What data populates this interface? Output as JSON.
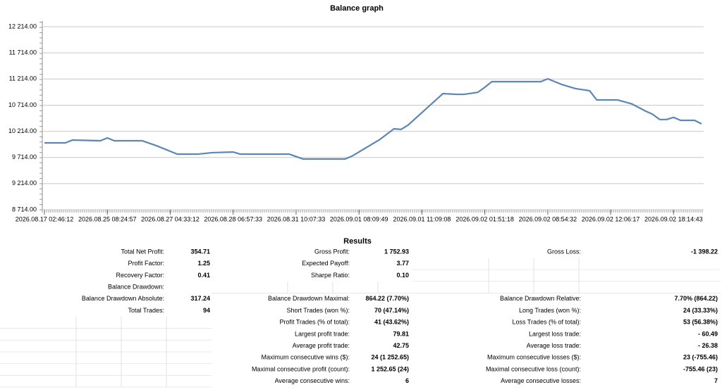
{
  "chart_data": {
    "type": "line",
    "title": "Balance graph",
    "x": [
      0,
      3,
      4,
      8,
      9,
      10,
      14,
      16,
      19,
      22,
      24,
      27,
      28,
      35,
      37,
      43,
      44,
      46,
      48,
      50,
      51,
      52,
      54,
      57,
      59,
      60,
      62,
      63,
      64,
      65,
      71,
      72,
      74,
      76,
      78,
      79,
      82,
      84,
      86,
      87,
      88,
      89,
      90,
      91,
      93,
      94
    ],
    "series": [
      {
        "color": "#5b86b5",
        "values": [
          9993,
          9993,
          10047,
          10033,
          10087,
          10033,
          10033,
          9940,
          9778,
          9778,
          9805,
          9818,
          9778,
          9778,
          9684,
          9684,
          9740,
          9899,
          10060,
          10262,
          10250,
          10330,
          10572,
          10935,
          10921,
          10921,
          10960,
          11056,
          11164,
          11164,
          11164,
          11218,
          11110,
          11030,
          10990,
          10814,
          10814,
          10740,
          10600,
          10540,
          10440,
          10440,
          10480,
          10424,
          10424,
          10357
        ]
      }
    ],
    "xlim": [
      0,
      94
    ],
    "xticks": [
      {
        "value": 0,
        "label": "2026.08.17 02:46:12"
      },
      {
        "value": 9,
        "label": "2026.08.25 08:24:57"
      },
      {
        "value": 18,
        "label": "2026.08.27 04:33:12"
      },
      {
        "value": 27,
        "label": "2026.08.28 06:57:33"
      },
      {
        "value": 36,
        "label": "2026.08.31 10:07:33"
      },
      {
        "value": 45,
        "label": "2026.09.01 08:09:49"
      },
      {
        "value": 54,
        "label": "2026.09.01 11:09:08"
      },
      {
        "value": 63,
        "label": "2026.09.02 01:51:18"
      },
      {
        "value": 72,
        "label": "2026.09.02 08:54:32"
      },
      {
        "value": 81,
        "label": "2026.09.02 12:06:17"
      },
      {
        "value": 90,
        "label": "2026.09.02 18:14:43"
      }
    ],
    "ylim": [
      8714,
      12322
    ],
    "yticks": [
      {
        "value": 8714,
        "label": "8 714.00"
      },
      {
        "value": 9214,
        "label": "9 214.00"
      },
      {
        "value": 9714,
        "label": "9 714.00"
      },
      {
        "value": 10214,
        "label": "10 214.00"
      },
      {
        "value": 10714,
        "label": "10 714.00"
      },
      {
        "value": 11214,
        "label": "11 214.00"
      },
      {
        "value": 11714,
        "label": "11 714.00"
      },
      {
        "value": 12214,
        "label": "12 214.00"
      }
    ],
    "grid": true
  },
  "results": {
    "title": "Results",
    "rows": [
      [
        {
          "label": "Total Net Profit:",
          "value": "354.71"
        },
        {
          "label": "Gross Profit:",
          "value": "1 752.93"
        },
        {
          "label": "Gross Loss:",
          "value": "-1 398.22"
        }
      ],
      [
        {
          "label": "Profit Factor:",
          "value": "1.25"
        },
        {
          "label": "Expected Payoff:",
          "value": "3.77"
        },
        null
      ],
      [
        {
          "label": "Recovery Factor:",
          "value": "0.41"
        },
        {
          "label": "Sharpe Ratio:",
          "value": "0.10"
        },
        null
      ],
      [
        {
          "label": "Balance Drawdown:"
        },
        null,
        null
      ],
      [
        {
          "label": "Balance Drawdown Absolute:",
          "value": "317.24"
        },
        {
          "label": "Balance Drawdown Maximal:",
          "value": "864.22 (7.70%)"
        },
        {
          "label": "Balance Drawdown Relative:",
          "value": "7.70% (864.22)"
        }
      ],
      [
        {
          "label": "Total Trades:",
          "value": "94"
        },
        {
          "label": "Short Trades (won %):",
          "value": "70 (47.14%)"
        },
        {
          "label": "Long Trades (won %):",
          "value": "24 (33.33%)"
        }
      ],
      [
        null,
        {
          "label": "Profit Trades (% of total):",
          "value": "41 (43.62%)"
        },
        {
          "label": "Loss Trades (% of total):",
          "value": "53 (56.38%)"
        }
      ],
      [
        null,
        {
          "label": "Largest profit trade:",
          "value": "79.81"
        },
        {
          "label": "Largest loss trade:",
          "value": "- 60.49"
        }
      ],
      [
        null,
        {
          "label": "Average profit trade:",
          "value": "42.75"
        },
        {
          "label": "Average loss trade:",
          "value": "- 26.38"
        }
      ],
      [
        null,
        {
          "label": "Maximum consecutive wins ($):",
          "value": "24 (1 252.65)"
        },
        {
          "label": "Maximum consecutive losses ($):",
          "value": "23 (-755.46)"
        }
      ],
      [
        null,
        {
          "label": "Maximal consecutive profit (count):",
          "value": "1 252.65 (24)"
        },
        {
          "label": "Maximal consecutive loss (count):",
          "value": "-755.46 (23)"
        }
      ],
      [
        null,
        {
          "label": "Average consecutive wins:",
          "value": "6"
        },
        {
          "label": "Average consecutive losses:",
          "value": "7"
        }
      ]
    ]
  }
}
